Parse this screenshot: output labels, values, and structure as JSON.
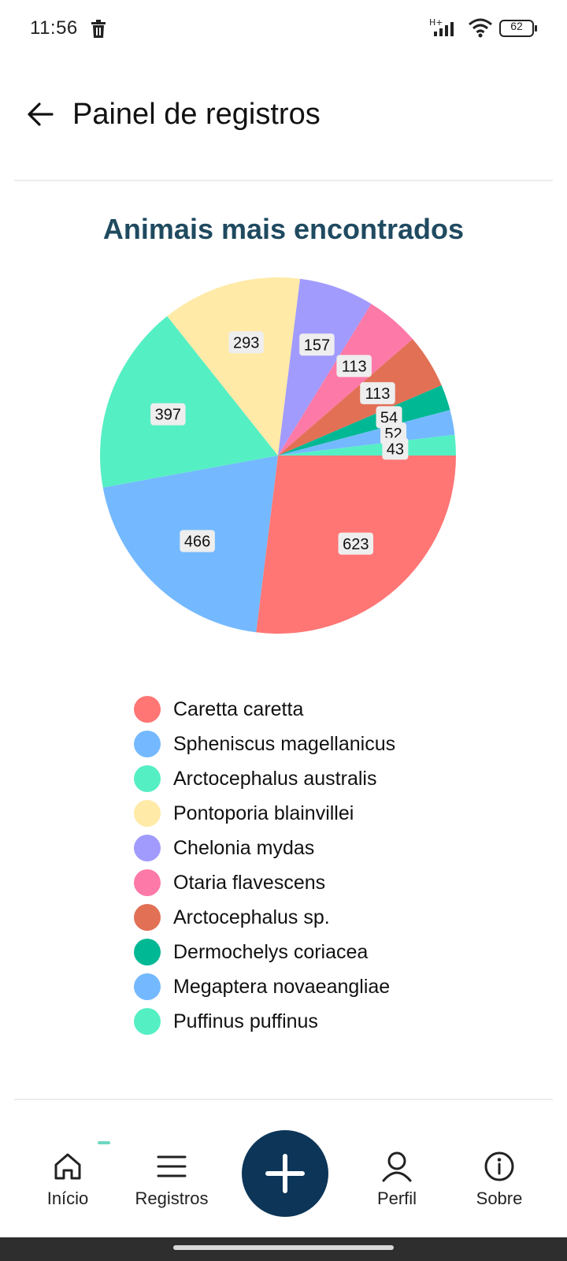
{
  "status_bar": {
    "time": "11:56",
    "network_label": "H+",
    "battery": "62"
  },
  "header": {
    "title": "Painel de registros"
  },
  "chart_data": {
    "type": "pie",
    "title": "Animais mais encontrados",
    "labels": [
      "Caretta caretta",
      "Spheniscus magellanicus",
      "Arctocephalus australis",
      "Pontoporia blainvillei",
      "Chelonia mydas",
      "Otaria flavescens",
      "Arctocephalus sp.",
      "Dermochelys coriacea",
      "Megaptera novaeangliae",
      "Puffinus puffinus"
    ],
    "values": [
      623,
      466,
      397,
      293,
      157,
      113,
      113,
      54,
      52,
      43
    ],
    "colors": [
      "#ff7675",
      "#74b9ff",
      "#55efc4",
      "#ffeaa7",
      "#a29bfe",
      "#fd79a8",
      "#e17055",
      "#00b894",
      "#74b9ff",
      "#55efc4"
    ],
    "legend_position": "bottom",
    "data_labels": true
  },
  "bottom_nav": {
    "items": [
      {
        "label": "Início",
        "icon": "home-icon"
      },
      {
        "label": "Registros",
        "icon": "menu-icon"
      },
      {
        "label": "Perfil",
        "icon": "person-icon"
      },
      {
        "label": "Sobre",
        "icon": "info-icon"
      }
    ],
    "fab_icon": "plus-icon",
    "fab_color": "#0c3558"
  }
}
